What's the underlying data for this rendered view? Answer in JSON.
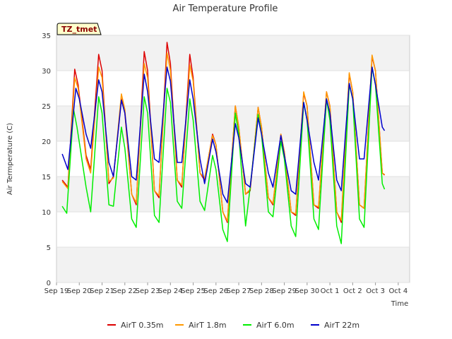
{
  "chart_data": {
    "type": "line",
    "title": "Air Temperature Profile",
    "xlabel": "Time",
    "ylabel": "Air Termperature (C)",
    "badge": "TZ_tmet",
    "ylim": [
      0,
      35
    ],
    "yticks": [
      0,
      5,
      10,
      15,
      20,
      25,
      30,
      35
    ],
    "xlim": [
      0,
      15.5
    ],
    "xticks": [
      {
        "v": 0,
        "label": "Sep 19"
      },
      {
        "v": 1,
        "label": "Sep 20"
      },
      {
        "v": 2,
        "label": "Sep 21"
      },
      {
        "v": 3,
        "label": "Sep 22"
      },
      {
        "v": 4,
        "label": "Sep 23"
      },
      {
        "v": 5,
        "label": "Sep 24"
      },
      {
        "v": 6,
        "label": "Sep 25"
      },
      {
        "v": 7,
        "label": "Sep 26"
      },
      {
        "v": 8,
        "label": "Sep 27"
      },
      {
        "v": 9,
        "label": "Sep 28"
      },
      {
        "v": 10,
        "label": "Sep 29"
      },
      {
        "v": 11,
        "label": "Sep 30"
      },
      {
        "v": 12,
        "label": "Oct 1"
      },
      {
        "v": 13,
        "label": "Oct 2"
      },
      {
        "v": 14,
        "label": "Oct 3"
      },
      {
        "v": 15,
        "label": "Oct 4"
      }
    ],
    "grid_bands": true,
    "legend_position": "bottom",
    "series": [
      {
        "name": "AirT 0.35m",
        "color": "#dd0000",
        "x": [
          0.25,
          0.5,
          0.8,
          0.95,
          1.3,
          1.5,
          1.85,
          2.0,
          2.3,
          2.5,
          2.85,
          3.0,
          3.3,
          3.5,
          3.85,
          4.0,
          4.3,
          4.5,
          4.85,
          5.0,
          5.3,
          5.5,
          5.85,
          6.0,
          6.3,
          6.5,
          6.85,
          7.0,
          7.3,
          7.5,
          7.85,
          8.0,
          8.3,
          8.5,
          8.85,
          9.0,
          9.3,
          9.5,
          9.85,
          10.0,
          10.3,
          10.5,
          10.85,
          11.0,
          11.3,
          11.5,
          11.85,
          12.0,
          12.3,
          12.5,
          12.85,
          13.0,
          13.3,
          13.5,
          13.85,
          14.0,
          14.3,
          14.4
        ],
        "y": [
          14.5,
          13.5,
          30.2,
          28.0,
          18.0,
          16.0,
          32.3,
          30.0,
          14.0,
          15.0,
          26.0,
          24.0,
          12.5,
          11.0,
          32.7,
          30.0,
          13.0,
          12.0,
          34.0,
          31.0,
          14.5,
          13.5,
          32.3,
          29.0,
          15.5,
          14.5,
          21.0,
          19.5,
          10.0,
          8.5,
          25.0,
          22.0,
          12.5,
          13.0,
          24.8,
          22.0,
          12.0,
          11.0,
          21.0,
          18.5,
          10.0,
          9.5,
          26.8,
          25.0,
          11.0,
          10.5,
          27.0,
          25.0,
          10.0,
          8.5,
          29.5,
          27.0,
          11.0,
          10.5,
          32.0,
          30.0,
          15.5,
          15.2
        ]
      },
      {
        "name": "AirT 1.8m",
        "color": "#ff9900",
        "x": [
          0.25,
          0.5,
          0.8,
          0.95,
          1.3,
          1.5,
          1.85,
          2.0,
          2.3,
          2.5,
          2.85,
          3.0,
          3.3,
          3.5,
          3.85,
          4.0,
          4.3,
          4.5,
          4.85,
          5.0,
          5.3,
          5.5,
          5.85,
          6.0,
          6.3,
          6.5,
          6.85,
          7.0,
          7.3,
          7.5,
          7.85,
          8.0,
          8.3,
          8.5,
          8.85,
          9.0,
          9.3,
          9.5,
          9.85,
          10.0,
          10.3,
          10.5,
          10.85,
          11.0,
          11.3,
          11.5,
          11.85,
          12.0,
          12.3,
          12.5,
          12.85,
          13.0,
          13.3,
          13.5,
          13.85,
          14.0,
          14.3,
          14.4
        ],
        "y": [
          14.3,
          13.3,
          29.0,
          27.5,
          17.5,
          15.5,
          30.5,
          29.0,
          14.3,
          14.8,
          26.7,
          24.5,
          12.5,
          11.3,
          31.0,
          29.0,
          13.0,
          12.3,
          32.5,
          30.0,
          14.5,
          13.8,
          30.8,
          28.5,
          15.5,
          14.8,
          20.8,
          19.5,
          10.0,
          8.7,
          25.0,
          22.0,
          12.5,
          13.2,
          24.8,
          22.0,
          12.0,
          11.2,
          21.0,
          18.5,
          10.0,
          9.7,
          27.0,
          25.0,
          11.0,
          10.7,
          27.0,
          25.0,
          10.0,
          8.8,
          29.7,
          27.0,
          11.0,
          10.5,
          32.2,
          30.0,
          15.5,
          15.3
        ]
      },
      {
        "name": "AirT 6.0m",
        "color": "#00ee00",
        "x": [
          0.25,
          0.45,
          0.75,
          0.9,
          1.3,
          1.5,
          1.85,
          2.0,
          2.3,
          2.5,
          2.85,
          3.0,
          3.3,
          3.5,
          3.85,
          4.0,
          4.3,
          4.5,
          4.85,
          5.0,
          5.3,
          5.5,
          5.85,
          6.0,
          6.3,
          6.5,
          6.85,
          7.0,
          7.3,
          7.5,
          7.85,
          8.0,
          8.3,
          8.5,
          8.85,
          9.0,
          9.3,
          9.5,
          9.85,
          10.0,
          10.3,
          10.5,
          10.85,
          11.0,
          11.3,
          11.5,
          11.85,
          12.0,
          12.3,
          12.5,
          12.85,
          13.0,
          13.3,
          13.5,
          13.85,
          14.0,
          14.3,
          14.4
        ],
        "y": [
          10.8,
          9.8,
          24.5,
          22.0,
          13.5,
          10.0,
          26.3,
          24.0,
          11.0,
          10.8,
          22.0,
          19.0,
          9.0,
          7.8,
          26.3,
          24.0,
          9.5,
          8.5,
          27.5,
          25.5,
          11.5,
          10.5,
          26.0,
          23.0,
          11.5,
          10.2,
          18.0,
          16.0,
          7.5,
          5.8,
          24.0,
          21.0,
          8.0,
          13.5,
          23.8,
          21.0,
          10.0,
          9.3,
          20.0,
          17.5,
          8.0,
          6.5,
          25.5,
          23.0,
          9.0,
          7.5,
          26.0,
          23.0,
          8.0,
          5.5,
          28.0,
          26.0,
          9.0,
          7.8,
          30.5,
          28.0,
          14.0,
          13.2
        ]
      },
      {
        "name": "AirT 22m",
        "color": "#0000cc",
        "x": [
          0.25,
          0.5,
          0.85,
          1.0,
          1.3,
          1.5,
          1.85,
          2.0,
          2.3,
          2.5,
          2.85,
          3.0,
          3.3,
          3.5,
          3.85,
          4.0,
          4.3,
          4.5,
          4.85,
          5.0,
          5.3,
          5.5,
          5.85,
          6.0,
          6.3,
          6.5,
          6.85,
          7.0,
          7.3,
          7.5,
          7.85,
          8.0,
          8.3,
          8.5,
          8.85,
          9.0,
          9.3,
          9.5,
          9.85,
          10.0,
          10.3,
          10.5,
          10.85,
          11.0,
          11.3,
          11.5,
          11.85,
          12.0,
          12.3,
          12.5,
          12.85,
          13.0,
          13.3,
          13.5,
          13.85,
          14.0,
          14.3,
          14.4
        ],
        "y": [
          18.2,
          16.0,
          27.5,
          26.0,
          21.0,
          19.0,
          28.7,
          27.0,
          17.0,
          15.0,
          25.8,
          24.0,
          15.0,
          14.5,
          29.5,
          27.0,
          17.5,
          17.0,
          30.5,
          28.5,
          17.0,
          17.0,
          28.7,
          26.0,
          17.5,
          14.0,
          20.3,
          18.5,
          12.5,
          11.3,
          22.5,
          20.5,
          14.0,
          13.5,
          23.3,
          21.0,
          15.5,
          13.5,
          20.8,
          18.0,
          13.0,
          12.5,
          25.5,
          23.0,
          17.0,
          14.5,
          26.0,
          24.0,
          14.5,
          13.0,
          28.2,
          26.0,
          17.5,
          17.5,
          30.5,
          28.0,
          22.0,
          21.5
        ]
      }
    ]
  }
}
